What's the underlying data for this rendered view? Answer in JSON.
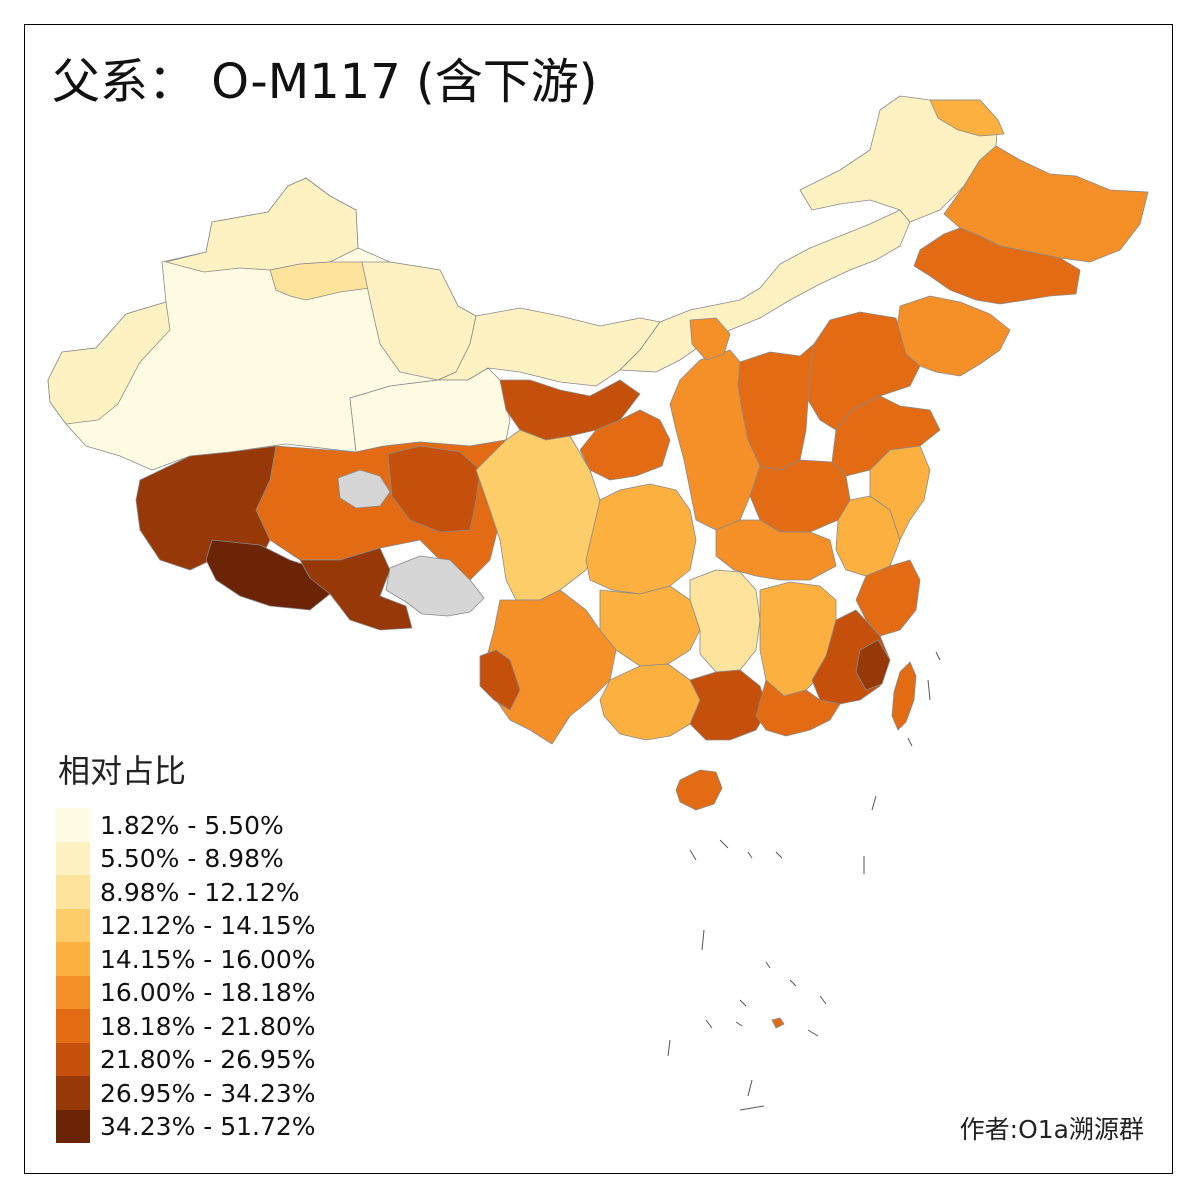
{
  "map": {
    "title": "父系： O-M117 (含下游)",
    "legend_title": "相对占比",
    "legend": [
      {
        "label": "1.82% - 5.50%",
        "color": "#fffbe3"
      },
      {
        "label": "5.50% - 8.98%",
        "color": "#fff2c2"
      },
      {
        "label": "8.98% - 12.12%",
        "color": "#fee39d"
      },
      {
        "label": "12.12% - 14.15%",
        "color": "#fdcd6a"
      },
      {
        "label": "14.15% - 16.00%",
        "color": "#fbb040"
      },
      {
        "label": "16.00% - 18.18%",
        "color": "#f58f27"
      },
      {
        "label": "18.18% - 21.80%",
        "color": "#e36b14"
      },
      {
        "label": "21.80% - 26.95%",
        "color": "#c4500b"
      },
      {
        "label": "26.95% - 34.23%",
        "color": "#963808"
      },
      {
        "label": "34.23% - 51.72%",
        "color": "#6b2406"
      }
    ],
    "no_data_color": "#d6d6d6",
    "credit": "作者:O1a溯源群"
  }
}
